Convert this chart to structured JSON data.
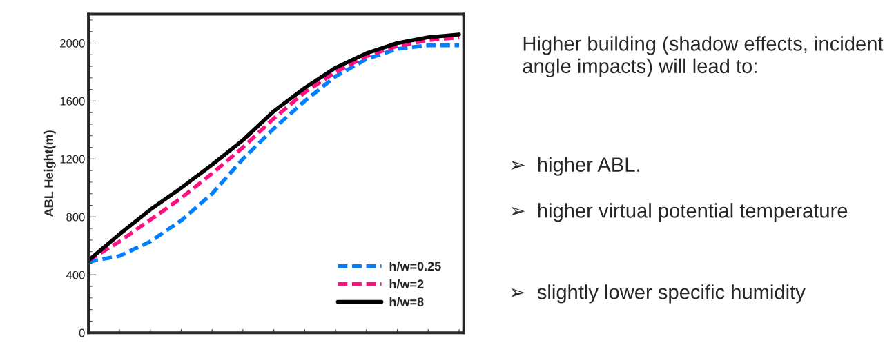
{
  "chart_data": {
    "type": "line",
    "ylabel": "ABL Height(m)",
    "categories": [
      null,
      null,
      null,
      null,
      null,
      null,
      null,
      null,
      null,
      null,
      null,
      null,
      null
    ],
    "series": [
      {
        "name": "h/w=0.25",
        "color": "#0080ff",
        "line_style": "dashed",
        "values": [
          490,
          530,
          630,
          775,
          960,
          1200,
          1410,
          1600,
          1770,
          1890,
          1960,
          1985,
          1985
        ]
      },
      {
        "name": "h/w=2",
        "color": "#ff1080",
        "line_style": "dashed",
        "values": [
          500,
          630,
          780,
          930,
          1100,
          1280,
          1480,
          1660,
          1800,
          1910,
          1980,
          2020,
          2040
        ]
      },
      {
        "name": "h/w=8",
        "color": "#000000",
        "line_style": "solid",
        "values": [
          500,
          680,
          850,
          1000,
          1160,
          1330,
          1530,
          1690,
          1830,
          1930,
          2000,
          2040,
          2060
        ]
      }
    ],
    "ylim": [
      0,
      2200
    ],
    "yticks": [
      0,
      400,
      800,
      1200,
      1600,
      2000
    ],
    "grid": false,
    "legend": "bottom right",
    "marker": "none",
    "annotations": [
      "Higher building (shadow effects, incident angle impacts) will lead to:",
      "➢  higher ABL.",
      "➢  higher virtual potential temperature",
      "➢  slightly lower specific humidity"
    ]
  }
}
